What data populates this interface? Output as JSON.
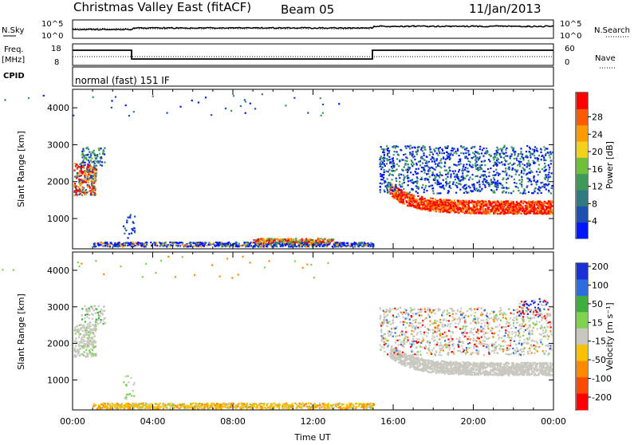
{
  "header": {
    "title": "Christmas Valley East (fitACF)",
    "beam": "Beam 05",
    "date": "11/Jan/2013"
  },
  "top_panels": {
    "nsky_label": "N.Sky",
    "nsky_ticks": [
      "10^5",
      "10^0"
    ],
    "nsearch_label": "N.Search",
    "nsearch_ticks": [
      "10^5",
      "10^0"
    ],
    "freq_label_line1": "Freq.",
    "freq_label_line2": "[MHz]",
    "freq_ticks": [
      "18",
      "8"
    ],
    "nave_label": "Nave",
    "nave_ticks": [
      "60",
      "0"
    ],
    "cpid_label": "CPID",
    "cpid_value": "normal (fast) 151 IF"
  },
  "colors": {
    "power_scale": [
      "#0016ff",
      "#1f4fb3",
      "#2f7a7f",
      "#3f9a5a",
      "#6fbf3a",
      "#f2d21a",
      "#ff9a00",
      "#ff5a00",
      "#ff0000"
    ],
    "velocity_scale": [
      "#1a2fd6",
      "#2d6be0",
      "#3fae3f",
      "#7fd14f",
      "#c8c8c0",
      "#f7c200",
      "#ff8a00",
      "#ff4a00",
      "#ff0000"
    ],
    "ground_scatter": "#c8c8c0"
  },
  "chart_data": [
    {
      "type": "heatmap",
      "panel": "power",
      "ylabel": "Slant Range [km]",
      "xlabel": "",
      "x_ticks": [
        "00:00",
        "04:00",
        "08:00",
        "12:00",
        "16:00",
        "20:00",
        "00:00"
      ],
      "y_ticks": [
        "1000",
        "2000",
        "3000",
        "4000"
      ],
      "xlim_hours": [
        0,
        24
      ],
      "ylim_km": [
        180,
        4500
      ],
      "colorbar_label": "Power [dB]",
      "colorbar_ticks": [
        "4",
        "8",
        "12",
        "16",
        "20",
        "24",
        "28"
      ],
      "colorbar_range": [
        0,
        30
      ]
    },
    {
      "type": "heatmap",
      "panel": "velocity",
      "ylabel": "Slant Range [km]",
      "xlabel": "Time UT",
      "x_ticks": [
        "00:00",
        "04:00",
        "08:00",
        "12:00",
        "16:00",
        "20:00",
        "00:00"
      ],
      "y_ticks": [
        "1000",
        "2000",
        "3000",
        "4000"
      ],
      "xlim_hours": [
        0,
        24
      ],
      "ylim_km": [
        180,
        4500
      ],
      "colorbar_label": "Velocity [m s⁻¹]",
      "colorbar_ticks": [
        "200",
        "100",
        "50",
        "15",
        "-15",
        "-50",
        "-100",
        "-200"
      ],
      "colorbar_range": [
        -250,
        250
      ]
    }
  ]
}
